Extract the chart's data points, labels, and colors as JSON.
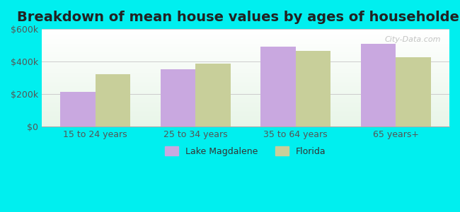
{
  "title": "Breakdown of mean house values by ages of householders",
  "categories": [
    "15 to 24 years",
    "25 to 34 years",
    "35 to 64 years",
    "65 years+"
  ],
  "lake_magdalene": [
    215000,
    355000,
    490000,
    510000
  ],
  "florida": [
    325000,
    390000,
    465000,
    425000
  ],
  "bar_color_lm": "#c9a8e0",
  "bar_color_fl": "#c8cf9a",
  "ylim": [
    0,
    600000
  ],
  "yticks": [
    0,
    200000,
    400000,
    600000
  ],
  "ytick_labels": [
    "$0",
    "$200k",
    "$400k",
    "$600k"
  ],
  "legend_lm": "Lake Magdalene",
  "legend_fl": "Florida",
  "background_color": "#00EFEF",
  "title_fontsize": 14,
  "label_fontsize": 9,
  "tick_fontsize": 9,
  "watermark": "City-Data.com"
}
